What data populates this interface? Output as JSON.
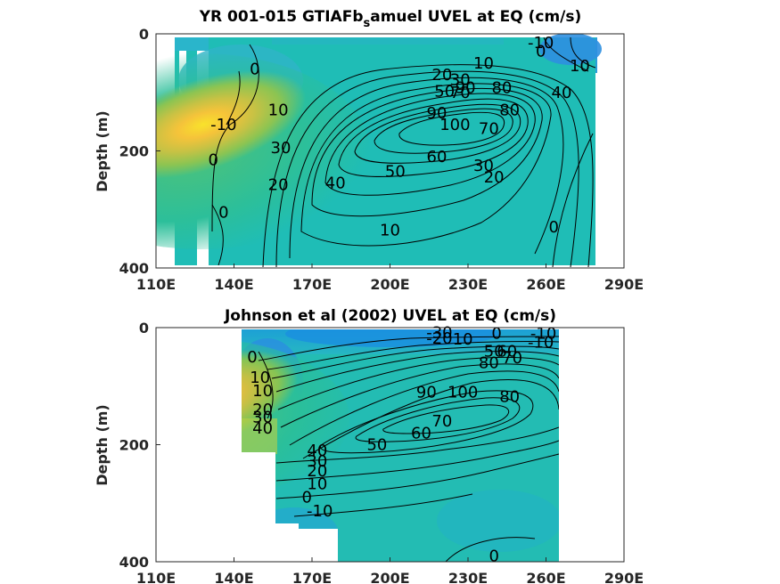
{
  "chart_data": [
    {
      "type": "heatmap",
      "title_main": "YR 001-015 GTIAFb",
      "title_sub": "s",
      "title_rest": "amuel UVEL at EQ (cm/s)",
      "ylabel": "Depth (m)",
      "xlabel": "",
      "x_ticks": [
        "110E",
        "140E",
        "170E",
        "200E",
        "230E",
        "260E",
        "290E"
      ],
      "y_ticks": [
        "0",
        "200",
        "400"
      ],
      "xlim": [
        110,
        290
      ],
      "ylim": [
        0,
        400
      ],
      "grid": false,
      "core": {
        "lon": 228,
        "depth": 150,
        "max_speed": 105
      },
      "contour_labels": [
        {
          "text": "0",
          "lon": 148,
          "depth": 60
        },
        {
          "text": "-10",
          "lon": 136,
          "depth": 155
        },
        {
          "text": "0",
          "lon": 132,
          "depth": 215
        },
        {
          "text": "10",
          "lon": 157,
          "depth": 130
        },
        {
          "text": "30",
          "lon": 158,
          "depth": 195
        },
        {
          "text": "20",
          "lon": 157,
          "depth": 258
        },
        {
          "text": "0",
          "lon": 136,
          "depth": 305
        },
        {
          "text": "40",
          "lon": 179,
          "depth": 255
        },
        {
          "text": "20",
          "lon": 220,
          "depth": 70
        },
        {
          "text": "30",
          "lon": 227,
          "depth": 78
        },
        {
          "text": "50",
          "lon": 221,
          "depth": 98
        },
        {
          "text": "70",
          "lon": 227,
          "depth": 100
        },
        {
          "text": "90",
          "lon": 229,
          "depth": 92
        },
        {
          "text": "80",
          "lon": 243,
          "depth": 92
        },
        {
          "text": "90",
          "lon": 218,
          "depth": 135
        },
        {
          "text": "100",
          "lon": 225,
          "depth": 155
        },
        {
          "text": "80",
          "lon": 246,
          "depth": 130
        },
        {
          "text": "70",
          "lon": 238,
          "depth": 162
        },
        {
          "text": "60",
          "lon": 218,
          "depth": 210
        },
        {
          "text": "50",
          "lon": 202,
          "depth": 235
        },
        {
          "text": "30",
          "lon": 236,
          "depth": 225
        },
        {
          "text": "20",
          "lon": 240,
          "depth": 245
        },
        {
          "text": "10",
          "lon": 236,
          "depth": 50
        },
        {
          "text": "-10",
          "lon": 258,
          "depth": 15
        },
        {
          "text": "0",
          "lon": 258,
          "depth": 30
        },
        {
          "text": "10",
          "lon": 273,
          "depth": 55
        },
        {
          "text": "40",
          "lon": 266,
          "depth": 100
        },
        {
          "text": "10",
          "lon": 200,
          "depth": 335
        },
        {
          "text": "0",
          "lon": 263,
          "depth": 330
        }
      ]
    },
    {
      "type": "heatmap",
      "title_main": "Johnson et al (2002) UVEL at EQ (cm/s)",
      "ylabel": "Depth (m)",
      "xlabel": "",
      "x_ticks": [
        "110E",
        "140E",
        "170E",
        "200E",
        "230E",
        "260E",
        "290E"
      ],
      "y_ticks": [
        "0",
        "200",
        "400"
      ],
      "xlim": [
        110,
        290
      ],
      "ylim": [
        0,
        400
      ],
      "grid": false,
      "core": {
        "lon": 225,
        "depth": 120,
        "max_speed": 100
      },
      "contour_labels": [
        {
          "text": "-30",
          "lon": 219,
          "depth": 8
        },
        {
          "text": "-20",
          "lon": 219,
          "depth": 18
        },
        {
          "text": "10",
          "lon": 228,
          "depth": 20
        },
        {
          "text": "0",
          "lon": 241,
          "depth": 10
        },
        {
          "text": "-10",
          "lon": 259,
          "depth": 10
        },
        {
          "text": "-10",
          "lon": 258,
          "depth": 25
        },
        {
          "text": "50",
          "lon": 240,
          "depth": 40
        },
        {
          "text": "60",
          "lon": 245,
          "depth": 40
        },
        {
          "text": "70",
          "lon": 247,
          "depth": 52
        },
        {
          "text": "80",
          "lon": 238,
          "depth": 60
        },
        {
          "text": "0",
          "lon": 147,
          "depth": 50
        },
        {
          "text": "10",
          "lon": 150,
          "depth": 85
        },
        {
          "text": "10",
          "lon": 151,
          "depth": 108
        },
        {
          "text": "20",
          "lon": 151,
          "depth": 140
        },
        {
          "text": "30",
          "lon": 151,
          "depth": 153
        },
        {
          "text": "40",
          "lon": 151,
          "depth": 172
        },
        {
          "text": "90",
          "lon": 214,
          "depth": 110
        },
        {
          "text": "100",
          "lon": 228,
          "depth": 110
        },
        {
          "text": "80",
          "lon": 246,
          "depth": 118
        },
        {
          "text": "70",
          "lon": 220,
          "depth": 160
        },
        {
          "text": "60",
          "lon": 212,
          "depth": 180
        },
        {
          "text": "50",
          "lon": 195,
          "depth": 200
        },
        {
          "text": "40",
          "lon": 172,
          "depth": 210
        },
        {
          "text": "30",
          "lon": 172,
          "depth": 228
        },
        {
          "text": "20",
          "lon": 172,
          "depth": 245
        },
        {
          "text": "10",
          "lon": 172,
          "depth": 267
        },
        {
          "text": "0",
          "lon": 168,
          "depth": 290
        },
        {
          "text": "-10",
          "lon": 173,
          "depth": 313
        },
        {
          "text": "0",
          "lon": 240,
          "depth": 390
        }
      ]
    }
  ]
}
